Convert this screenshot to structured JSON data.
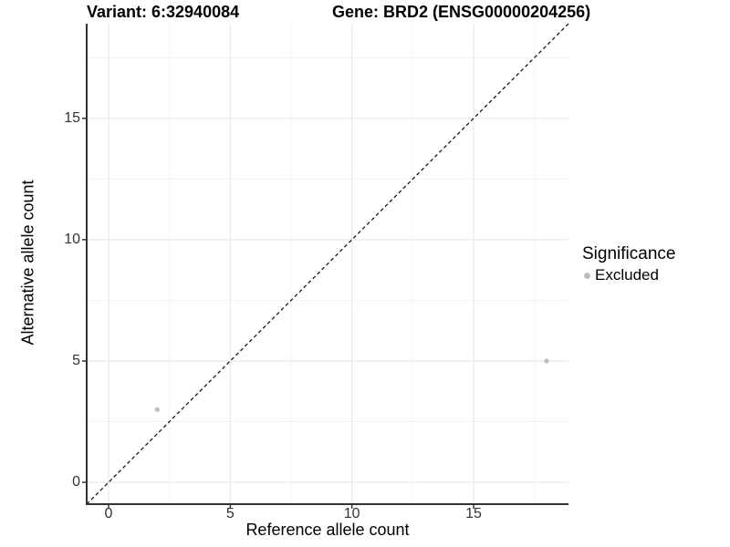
{
  "chart_data": {
    "type": "scatter",
    "titles": [
      "Variant: 6:32940084",
      "Gene: BRD2 (ENSG00000204256)"
    ],
    "xlabel": "Reference allele count",
    "ylabel": "Alternative allele count",
    "xlim": [
      -0.9,
      18.9
    ],
    "ylim": [
      -0.9,
      18.9
    ],
    "x_ticks": [
      0,
      5,
      10,
      15
    ],
    "y_ticks": [
      0,
      5,
      10,
      15
    ],
    "minor_gridlines": [
      2.5,
      7.5,
      12.5,
      17.5
    ],
    "grid": true,
    "series": [
      {
        "name": "Excluded",
        "color": "#bdbdbd",
        "points": [
          {
            "x": 2,
            "y": 3
          },
          {
            "x": 18,
            "y": 5
          }
        ]
      }
    ],
    "reference_line": {
      "slope": 1,
      "intercept": 0,
      "style": "dashed",
      "color": "#1a1a1a"
    },
    "legend": {
      "title": "Significance",
      "position": "right",
      "entries": [
        {
          "label": "Excluded",
          "color": "#bdbdbd"
        }
      ]
    },
    "colors": {
      "grid_major": "#e8e8e8",
      "grid_minor": "#f3f3f3",
      "axis_line": "#333333",
      "tick": "#333333"
    }
  }
}
